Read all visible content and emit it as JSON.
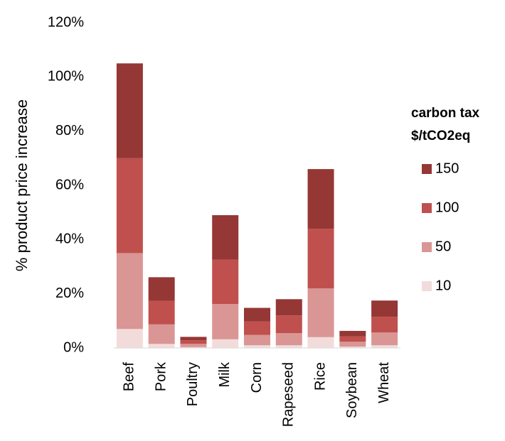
{
  "chart_data": {
    "type": "stacked_bar",
    "y_label": "% product price increase",
    "legend_title": [
      "carbon tax",
      "$/tCO2eq"
    ],
    "legend_position": "right",
    "grid": false,
    "categories": [
      "Beef",
      "Pork",
      "Poultry",
      "Milk",
      "Corn",
      "Rapeseed",
      "Rice",
      "Soybean",
      "Wheat"
    ],
    "series": [
      {
        "name": "10",
        "color": "#f2dcdb",
        "values": [
          7,
          1.5,
          0.3,
          3.2,
          1,
          1,
          4,
          0.5,
          1
        ]
      },
      {
        "name": "50",
        "color": "#d99694",
        "values": [
          28,
          7.2,
          1.2,
          13,
          3.8,
          4.5,
          18,
          1.8,
          4.7
        ]
      },
      {
        "name": "100",
        "color": "#c0504d",
        "values": [
          35,
          8.7,
          1.3,
          16.4,
          5,
          6.5,
          22,
          2,
          5.8
        ]
      },
      {
        "name": "150",
        "color": "#953735",
        "values": [
          35,
          8.7,
          1.3,
          16.4,
          5,
          6,
          22,
          2,
          6
        ]
      }
    ],
    "ylim": [
      0,
      120
    ],
    "yticks": [
      {
        "value": 0,
        "label": "0%"
      },
      {
        "value": 20,
        "label": "20%"
      },
      {
        "value": 40,
        "label": "40%"
      },
      {
        "value": 60,
        "label": "60%"
      },
      {
        "value": 80,
        "label": "80%"
      },
      {
        "value": 100,
        "label": "100%"
      },
      {
        "value": 120,
        "label": "120%"
      }
    ]
  }
}
